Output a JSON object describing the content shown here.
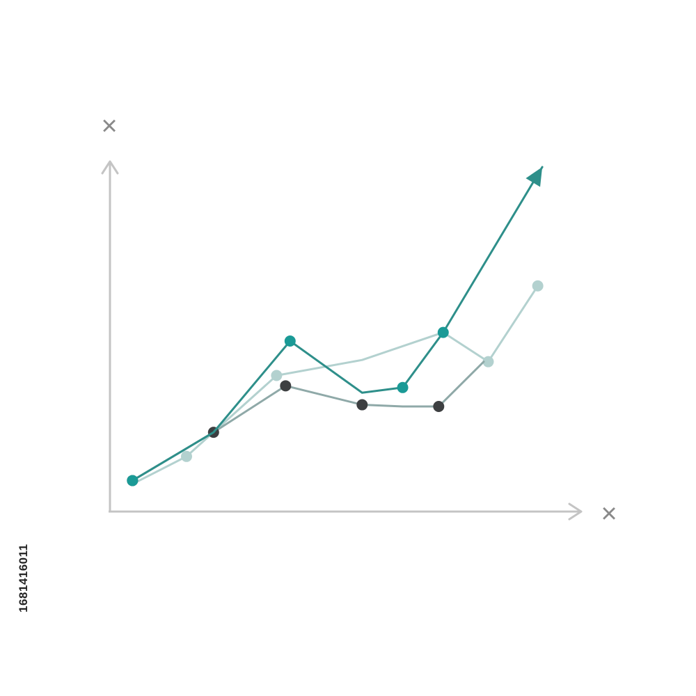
{
  "chart_data": {
    "type": "line",
    "title": "",
    "x_axis_symbol": "×",
    "y_axis_symbol": "×",
    "xlim": [
      0,
      10
    ],
    "ylim": [
      0,
      10
    ],
    "grid": false,
    "legend": "none",
    "series": [
      {
        "color": "#2e8f8a",
        "marker_color": "#1a9a96",
        "arrow_end": true,
        "points": [
          [
            0.5,
            0.9
          ],
          [
            2.3,
            2.3
          ],
          [
            4.0,
            4.95
          ],
          [
            5.6,
            3.45
          ],
          [
            6.5,
            3.6
          ],
          [
            7.4,
            5.2
          ],
          [
            9.6,
            10.0
          ]
        ],
        "markers": [
          0,
          2,
          4,
          5
        ]
      },
      {
        "color": "#b3d1cf",
        "marker_color": "#b3d1cf",
        "arrow_end": false,
        "points": [
          [
            0.5,
            0.8
          ],
          [
            1.7,
            1.6
          ],
          [
            3.7,
            3.95
          ],
          [
            5.6,
            4.4
          ],
          [
            7.4,
            5.2
          ],
          [
            8.4,
            4.35
          ],
          [
            9.5,
            6.55
          ]
        ],
        "markers": [
          1,
          2,
          5,
          6
        ]
      },
      {
        "color": "#8fa9a8",
        "marker_color": "#3d3f41",
        "arrow_end": false,
        "points": [
          [
            0.5,
            0.9
          ],
          [
            2.3,
            2.3
          ],
          [
            3.9,
            3.65
          ],
          [
            5.6,
            3.1
          ],
          [
            6.5,
            3.05
          ],
          [
            7.3,
            3.05
          ],
          [
            8.3,
            4.35
          ]
        ],
        "markers": [
          0,
          1,
          2,
          3,
          5
        ]
      }
    ]
  },
  "colors": {
    "axis": "#c4c4c4",
    "axis_symbol": "#8a8a8a"
  },
  "watermark": {
    "id": "1681416011"
  }
}
